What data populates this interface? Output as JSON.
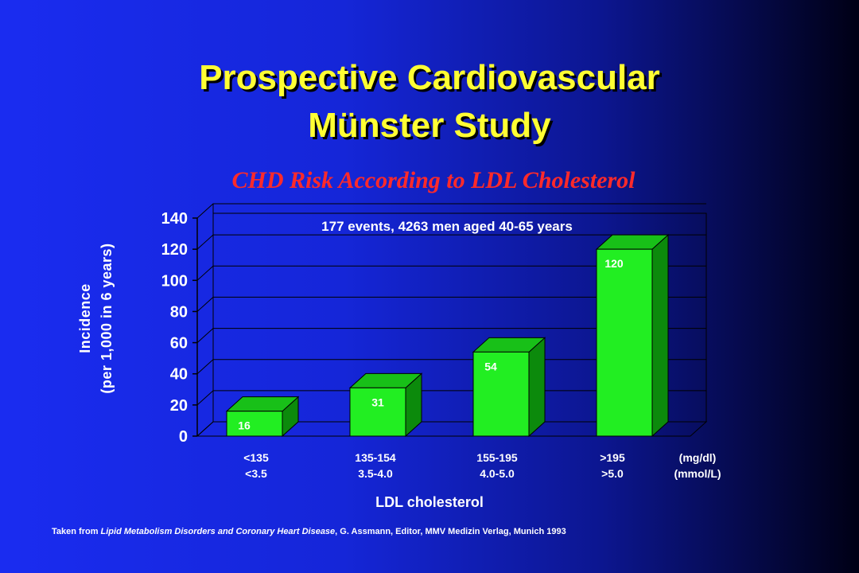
{
  "title_line1": "Prospective Cardiovascular",
  "title_line2": "Münster Study",
  "subtitle": "CHD Risk According to LDL Cholesterol",
  "footnote": {
    "prefix": "Taken from ",
    "book": "Lipid Metabolism Disorders and Coronary Heart Disease",
    "suffix": ", G. Assmann, Editor, MMV Medizin Verlag, Munich 1993"
  },
  "colors": {
    "title": "#ffff33",
    "subtitle": "#ff2a2a",
    "bar_front": "#22ee22",
    "bar_side": "#0c8a0c",
    "bar_top": "#18c018"
  },
  "chart_data": {
    "type": "bar",
    "categories": [
      "<135 <3.5",
      "135-154 3.5-4.0",
      "155-195 4.0-5.0",
      ">195 >5.0"
    ],
    "category_lines": [
      [
        "<135",
        "<3.5"
      ],
      [
        "135-154",
        "3.5-4.0"
      ],
      [
        "155-195",
        "4.0-5.0"
      ],
      [
        ">195",
        ">5.0"
      ]
    ],
    "units_lines": [
      "(mg/dl)",
      "(mmol/L)"
    ],
    "values": [
      16,
      31,
      54,
      120
    ],
    "annotation": "177 events, 4263 men aged 40-65 years",
    "xlabel": "LDL cholesterol",
    "ylabel_lines": [
      "Incidence",
      "(per 1,000 in 6 years)"
    ],
    "yticks": [
      0,
      20,
      40,
      60,
      80,
      100,
      120,
      140
    ],
    "ylim": [
      0,
      140
    ],
    "grid": true,
    "style": "3d"
  }
}
